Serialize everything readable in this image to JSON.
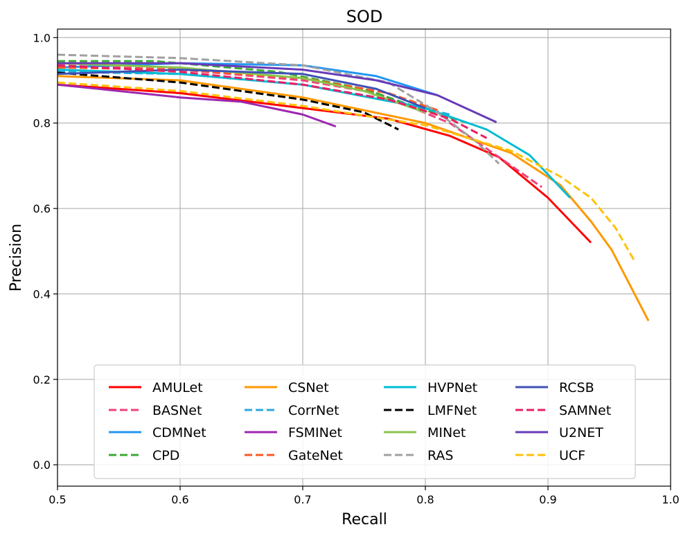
{
  "chart_data": {
    "type": "line",
    "title": "SOD",
    "xlabel": "Recall",
    "ylabel": "Precision",
    "xlim": [
      0.5,
      1.0
    ],
    "ylim": [
      -0.05,
      1.02
    ],
    "xticks": [
      "0.5",
      "0.6",
      "0.7",
      "0.8",
      "0.9",
      "1.0"
    ],
    "yticks": [
      "0.0",
      "0.2",
      "0.4",
      "0.6",
      "0.8",
      "1.0"
    ],
    "grid": true,
    "legend_position": "lower-center",
    "legend_columns": 4,
    "series": [
      {
        "name": "AMULet",
        "color": "#ff0000",
        "dash": "solid",
        "points": [
          [
            0.5,
            0.89
          ],
          [
            0.6,
            0.87
          ],
          [
            0.7,
            0.835
          ],
          [
            0.77,
            0.81
          ],
          [
            0.82,
            0.77
          ],
          [
            0.86,
            0.72
          ],
          [
            0.9,
            0.625
          ],
          [
            0.935,
            0.52
          ]
        ]
      },
      {
        "name": "BASNet",
        "color": "#f0407a",
        "dash": "dashed",
        "points": [
          [
            0.5,
            0.935
          ],
          [
            0.6,
            0.925
          ],
          [
            0.7,
            0.9
          ],
          [
            0.76,
            0.87
          ],
          [
            0.82,
            0.8
          ],
          [
            0.86,
            0.72
          ],
          [
            0.895,
            0.65
          ]
        ]
      },
      {
        "name": "CDMNet",
        "color": "#2196f3",
        "dash": "solid",
        "points": [
          [
            0.5,
            0.93
          ],
          [
            0.6,
            0.94
          ],
          [
            0.7,
            0.935
          ],
          [
            0.76,
            0.91
          ],
          [
            0.81,
            0.865
          ]
        ]
      },
      {
        "name": "CPD",
        "color": "#3aaa35",
        "dash": "dashed",
        "points": [
          [
            0.5,
            0.945
          ],
          [
            0.58,
            0.945
          ],
          [
            0.68,
            0.92
          ],
          [
            0.75,
            0.88
          ],
          [
            0.8,
            0.83
          ],
          [
            0.835,
            0.8
          ]
        ]
      },
      {
        "name": "CSNet",
        "color": "#ff9800",
        "dash": "solid",
        "points": [
          [
            0.5,
            0.91
          ],
          [
            0.6,
            0.9
          ],
          [
            0.7,
            0.86
          ],
          [
            0.8,
            0.8
          ],
          [
            0.87,
            0.73
          ],
          [
            0.91,
            0.655
          ],
          [
            0.935,
            0.57
          ],
          [
            0.952,
            0.503
          ],
          [
            0.982,
            0.337
          ]
        ]
      },
      {
        "name": "CorrNet",
        "color": "#29a8e0",
        "dash": "dashed",
        "points": [
          [
            0.5,
            0.92
          ],
          [
            0.6,
            0.915
          ],
          [
            0.7,
            0.89
          ],
          [
            0.77,
            0.855
          ],
          [
            0.82,
            0.82
          ]
        ]
      },
      {
        "name": "FSMINet",
        "color": "#9c27b0",
        "dash": "solid",
        "points": [
          [
            0.5,
            0.89
          ],
          [
            0.6,
            0.86
          ],
          [
            0.65,
            0.85
          ],
          [
            0.7,
            0.82
          ],
          [
            0.727,
            0.792
          ]
        ]
      },
      {
        "name": "GateNet",
        "color": "#ff5722",
        "dash": "dashed",
        "points": [
          [
            0.5,
            0.93
          ],
          [
            0.6,
            0.925
          ],
          [
            0.7,
            0.905
          ],
          [
            0.77,
            0.87
          ],
          [
            0.81,
            0.83
          ]
        ]
      },
      {
        "name": "HVPNet",
        "color": "#00bcd4",
        "dash": "solid",
        "points": [
          [
            0.5,
            0.925
          ],
          [
            0.6,
            0.915
          ],
          [
            0.7,
            0.89
          ],
          [
            0.8,
            0.835
          ],
          [
            0.85,
            0.785
          ],
          [
            0.885,
            0.725
          ],
          [
            0.918,
            0.625
          ]
        ]
      },
      {
        "name": "LMFNet",
        "color": "#000000",
        "dash": "dashed",
        "points": [
          [
            0.5,
            0.918
          ],
          [
            0.6,
            0.895
          ],
          [
            0.7,
            0.855
          ],
          [
            0.75,
            0.825
          ],
          [
            0.778,
            0.785
          ]
        ]
      },
      {
        "name": "MINet",
        "color": "#8bc34a",
        "dash": "solid",
        "points": [
          [
            0.5,
            0.94
          ],
          [
            0.6,
            0.93
          ],
          [
            0.7,
            0.905
          ],
          [
            0.75,
            0.875
          ],
          [
            0.8,
            0.825
          ]
        ]
      },
      {
        "name": "RAS",
        "color": "#a0a0a0",
        "dash": "dashed",
        "points": [
          [
            0.5,
            0.96
          ],
          [
            0.6,
            0.952
          ],
          [
            0.7,
            0.935
          ],
          [
            0.77,
            0.895
          ],
          [
            0.81,
            0.825
          ],
          [
            0.84,
            0.76
          ],
          [
            0.86,
            0.705
          ]
        ]
      },
      {
        "name": "RCSB",
        "color": "#3f51b5",
        "dash": "solid",
        "points": [
          [
            0.5,
            0.915
          ],
          [
            0.6,
            0.925
          ],
          [
            0.7,
            0.915
          ],
          [
            0.76,
            0.88
          ],
          [
            0.8,
            0.835
          ]
        ]
      },
      {
        "name": "SAMNet",
        "color": "#e91e63",
        "dash": "dashed",
        "points": [
          [
            0.5,
            0.935
          ],
          [
            0.6,
            0.92
          ],
          [
            0.7,
            0.89
          ],
          [
            0.77,
            0.855
          ],
          [
            0.82,
            0.81
          ],
          [
            0.85,
            0.765
          ]
        ]
      },
      {
        "name": "U2NET",
        "color": "#673ab7",
        "dash": "solid",
        "points": [
          [
            0.5,
            0.94
          ],
          [
            0.6,
            0.94
          ],
          [
            0.7,
            0.925
          ],
          [
            0.76,
            0.9
          ],
          [
            0.81,
            0.865
          ],
          [
            0.858,
            0.802
          ]
        ]
      },
      {
        "name": "UCF",
        "color": "#ffc107",
        "dash": "dashed",
        "points": [
          [
            0.5,
            0.895
          ],
          [
            0.6,
            0.875
          ],
          [
            0.7,
            0.84
          ],
          [
            0.8,
            0.795
          ],
          [
            0.87,
            0.735
          ],
          [
            0.91,
            0.675
          ],
          [
            0.935,
            0.625
          ],
          [
            0.955,
            0.555
          ],
          [
            0.97,
            0.48
          ]
        ]
      }
    ]
  }
}
